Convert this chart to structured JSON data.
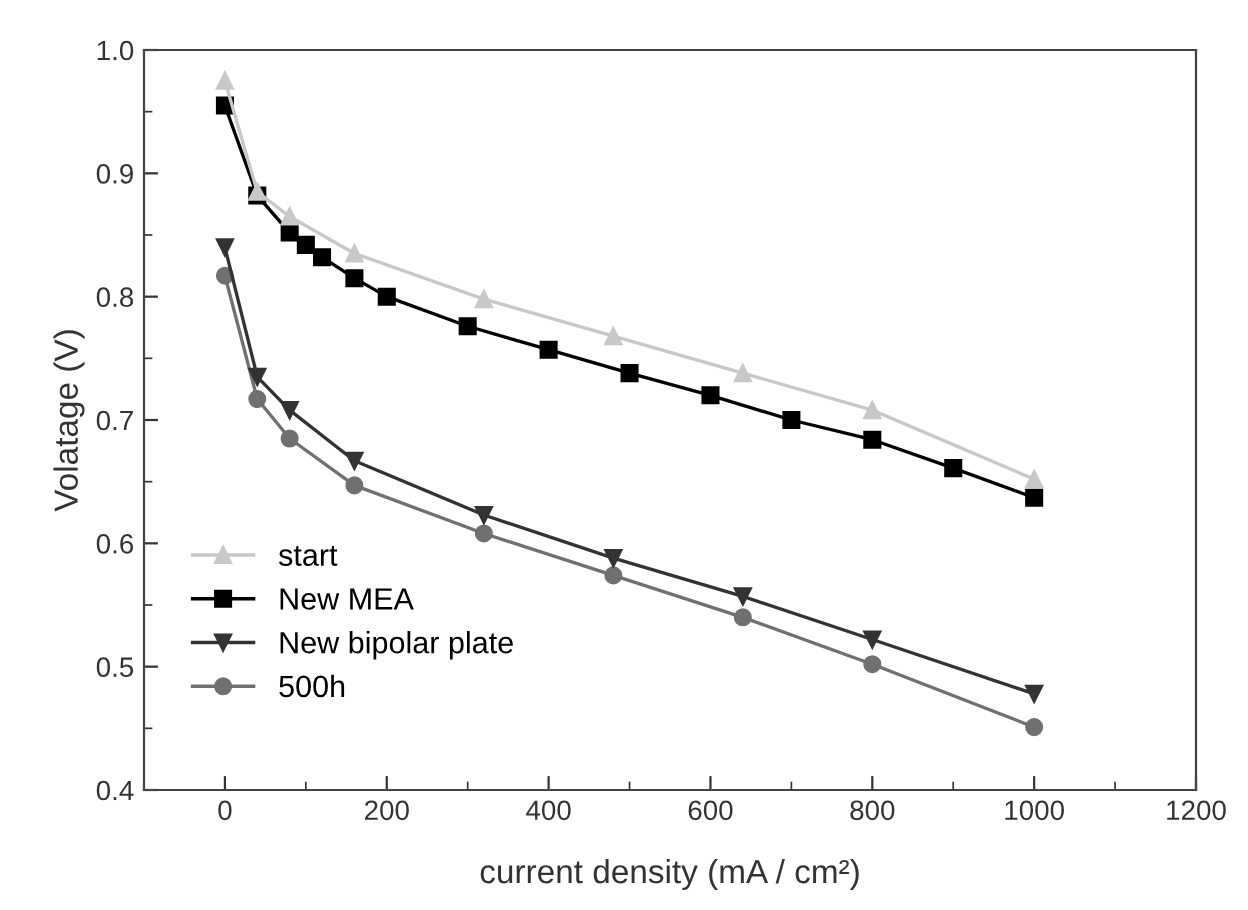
{
  "chart_data": {
    "type": "line",
    "xlabel": "current density (mA / cm²)",
    "ylabel": "Volatage (V)",
    "xlim": [
      -100,
      1200
    ],
    "xticks": [
      0,
      200,
      400,
      600,
      800,
      1000,
      1200
    ],
    "ylim": [
      0.4,
      1.0
    ],
    "yticks": [
      0.4,
      0.5,
      0.6,
      0.7,
      0.8,
      0.9,
      {
        "value": 1,
        "label": "1.0"
      }
    ],
    "grid": false,
    "legend": "bottom left",
    "line_style": "solid",
    "series": [
      {
        "name": "start",
        "color": "#c8c8c8",
        "marker": "triangle",
        "x": [
          0,
          40,
          80,
          160,
          320,
          480,
          640,
          800,
          1000
        ],
        "values": [
          0.975,
          0.885,
          0.865,
          0.835,
          0.798,
          0.768,
          0.738,
          0.708,
          0.652
        ]
      },
      {
        "name": "New MEA",
        "color": "#000000",
        "marker": "square",
        "x": [
          0,
          40,
          80,
          100,
          120,
          160,
          200,
          300,
          400,
          500,
          600,
          700,
          800,
          900,
          1000
        ],
        "values": [
          0.955,
          0.882,
          0.852,
          0.842,
          0.832,
          0.815,
          0.8,
          0.776,
          0.757,
          0.738,
          0.72,
          0.7,
          0.684,
          0.661,
          0.637
        ]
      },
      {
        "name": "New bipolar plate",
        "color": "#333333",
        "marker": "triangle_down",
        "x": [
          0,
          40,
          80,
          160,
          320,
          480,
          640,
          800,
          1000
        ],
        "values": [
          0.84,
          0.735,
          0.708,
          0.667,
          0.623,
          0.588,
          0.557,
          0.522,
          0.478
        ]
      },
      {
        "name": "500h",
        "color": "#707070",
        "marker": "circle",
        "x": [
          0,
          40,
          80,
          160,
          320,
          480,
          640,
          800,
          1000
        ],
        "values": [
          0.817,
          0.717,
          0.685,
          0.647,
          0.608,
          0.574,
          0.54,
          0.502,
          0.451
        ]
      }
    ]
  }
}
